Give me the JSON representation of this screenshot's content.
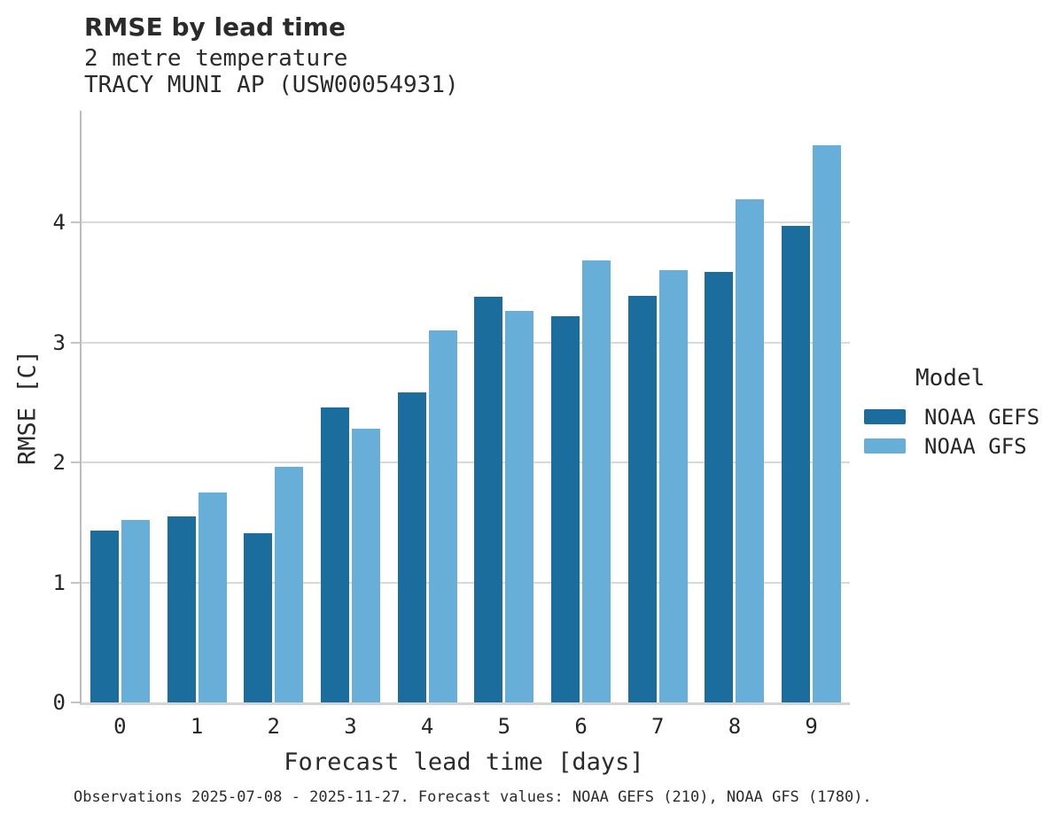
{
  "header": {
    "title": "RMSE by lead time",
    "subtitle_line1": "2 metre temperature",
    "subtitle_line2": "TRACY MUNI AP (USW00054931)"
  },
  "chart_data": {
    "type": "bar",
    "title": "RMSE by lead time",
    "subtitle": [
      "2 metre temperature",
      "TRACY MUNI AP (USW00054931)"
    ],
    "categories": [
      "0",
      "1",
      "2",
      "3",
      "4",
      "5",
      "6",
      "7",
      "8",
      "9"
    ],
    "series": [
      {
        "name": "NOAA GEFS",
        "color": "#1b6d9e",
        "values": [
          1.43,
          1.55,
          1.41,
          2.46,
          2.58,
          3.38,
          3.22,
          3.39,
          3.59,
          3.97
        ]
      },
      {
        "name": "NOAA GFS",
        "color": "#67afd8",
        "values": [
          1.52,
          1.75,
          1.96,
          2.28,
          3.1,
          3.26,
          3.68,
          3.6,
          4.19,
          4.64
        ]
      }
    ],
    "xlabel": "Forecast lead time [days]",
    "ylabel": "RMSE [C]",
    "ylim": [
      0,
      4.93
    ],
    "yticks": [
      0,
      1,
      2,
      3,
      4
    ],
    "grid": true,
    "legend": {
      "title": "Model",
      "position": "right"
    },
    "colors": {
      "gridline": "#d9d9d9",
      "axis": "#c4c4c4",
      "text": "#262626"
    }
  },
  "footer": {
    "caption": "Observations 2025-07-08 - 2025-11-27. Forecast values: NOAA GEFS (210), NOAA GFS (1780)."
  }
}
